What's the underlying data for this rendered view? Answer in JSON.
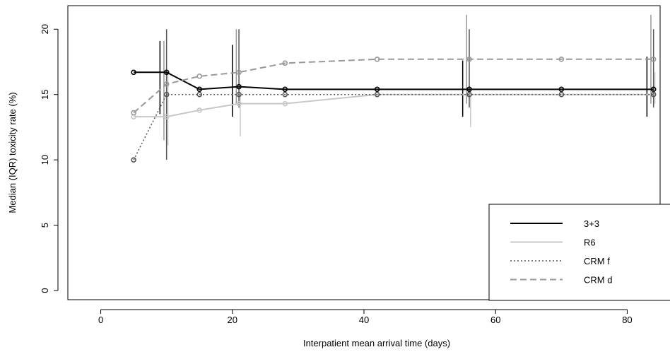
{
  "chart_data": {
    "type": "line",
    "xlabel": "Interpatient mean arrival time (days)",
    "ylabel": "Median (IQR) toxicity rate (%)",
    "xlim": [
      -5,
      85
    ],
    "ylim": [
      -0.7,
      21.8
    ],
    "xticks": [
      0,
      20,
      40,
      60,
      80
    ],
    "yticks": [
      0,
      5,
      10,
      15,
      20
    ],
    "grid": false,
    "legend_position": "bottom-right",
    "series": [
      {
        "name": "3+3",
        "color": "#000000",
        "dash": "solid",
        "x": [
          5,
          10,
          15,
          21,
          28,
          42,
          56,
          70,
          84
        ],
        "y": [
          16.7,
          16.7,
          15.4,
          15.6,
          15.4,
          15.4,
          15.4,
          15.4,
          15.4
        ],
        "iqr": [
          {
            "x": 9,
            "low": 13.5,
            "high": 19.1
          },
          {
            "x": 20,
            "low": 13.3,
            "high": 18.8
          },
          {
            "x": 55,
            "low": 13.3,
            "high": 17.6
          },
          {
            "x": 83,
            "low": 13.3,
            "high": 17.9
          }
        ]
      },
      {
        "name": "R6",
        "color": "#c8c8c8",
        "dash": "solid",
        "x": [
          5,
          10,
          15,
          21,
          28,
          42,
          56,
          70,
          84
        ],
        "y": [
          13.3,
          13.3,
          13.8,
          14.3,
          14.3,
          15.0,
          15.0,
          15.0,
          15.0
        ],
        "iqr": [
          {
            "x": 10.2,
            "low": 11.1,
            "high": 16.7
          },
          {
            "x": 21.2,
            "low": 11.8,
            "high": 15.0
          },
          {
            "x": 56.2,
            "low": 12.5,
            "high": 15.3
          },
          {
            "x": 84.2,
            "low": 14.3,
            "high": 16.7
          }
        ]
      },
      {
        "name": "CRM f",
        "color": "#555555",
        "dash": "dotted",
        "x": [
          5,
          10,
          15,
          21,
          28,
          42,
          56,
          70,
          84
        ],
        "y": [
          10.0,
          15.0,
          15.0,
          15.0,
          15.0,
          15.0,
          15.0,
          15.0,
          15.0
        ],
        "iqr": [
          {
            "x": 10,
            "low": 10.0,
            "high": 20.0
          },
          {
            "x": 21,
            "low": 14.0,
            "high": 20.0
          },
          {
            "x": 56,
            "low": 14.0,
            "high": 20.0
          },
          {
            "x": 84,
            "low": 14.0,
            "high": 20.0
          }
        ]
      },
      {
        "name": "CRM d",
        "color": "#999999",
        "dash": "dashed",
        "x": [
          5,
          10,
          15,
          21,
          28,
          42,
          56,
          70,
          84
        ],
        "y": [
          13.6,
          15.8,
          16.4,
          16.7,
          17.4,
          17.7,
          17.7,
          17.7,
          17.7
        ],
        "iqr": [
          {
            "x": 9.6,
            "low": 11.5,
            "high": 19.1
          },
          {
            "x": 20.6,
            "low": 14.2,
            "high": 20.0
          },
          {
            "x": 55.6,
            "low": 14.3,
            "high": 21.1
          },
          {
            "x": 83.6,
            "low": 14.3,
            "high": 21.1
          }
        ]
      }
    ]
  }
}
